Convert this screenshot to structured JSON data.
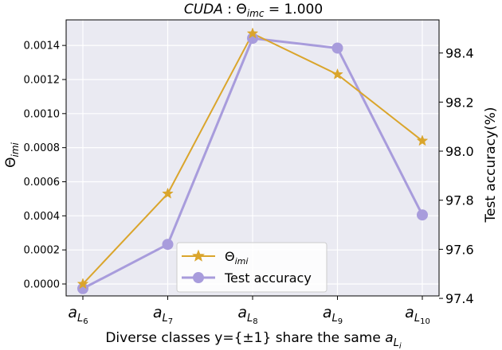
{
  "chart_data": {
    "type": "line",
    "title": "CUDA : Θimc = 1.000",
    "title_parts": {
      "prefix": "CUDA",
      "sep": " : ",
      "theta": "Θ",
      "sub": "imc",
      "suffix": " = 1.000"
    },
    "xlabel": {
      "main": "Diverse classes y={±1} share the same ",
      "a": "a",
      "sub": "L",
      "subsub": "i"
    },
    "categories": [
      {
        "a": "a",
        "sub": "L",
        "subsub": "6"
      },
      {
        "a": "a",
        "sub": "L",
        "subsub": "7"
      },
      {
        "a": "a",
        "sub": "L",
        "subsub": "8"
      },
      {
        "a": "a",
        "sub": "L",
        "subsub": "9"
      },
      {
        "a": "a",
        "sub": "L",
        "subsub": "10"
      }
    ],
    "y_left": {
      "label": {
        "theta": "Θ",
        "sub": "imi"
      },
      "lim": [
        -7e-05,
        0.00155
      ],
      "ticks": [
        "0.0000",
        "0.0002",
        "0.0004",
        "0.0006",
        "0.0008",
        "0.0010",
        "0.0012",
        "0.0014"
      ],
      "tick_values": [
        0,
        0.0002,
        0.0004,
        0.0006,
        0.0008,
        0.001,
        0.0012,
        0.0014
      ]
    },
    "y_right": {
      "label": "Test accuracy(%)",
      "lim": [
        97.41,
        98.535
      ],
      "ticks": [
        "97.4",
        "97.6",
        "97.8",
        "98.0",
        "98.2",
        "98.4"
      ],
      "tick_values": [
        97.4,
        97.6,
        97.8,
        98.0,
        98.2,
        98.4
      ]
    },
    "series": [
      {
        "name": {
          "theta": "Θ",
          "sub": "imi"
        },
        "axis": "left",
        "values": [
          0.0,
          0.00053,
          0.00147,
          0.00123,
          0.00084
        ],
        "color": "#DAA52C",
        "marker": "star"
      },
      {
        "name": "Test accuracy",
        "axis": "right",
        "values": [
          97.44,
          97.62,
          98.46,
          98.42,
          97.74
        ],
        "color": "#A89CDC",
        "marker": "circle"
      }
    ],
    "grid": true,
    "legend_position": "lower-center",
    "background": "#EAEAF2"
  }
}
